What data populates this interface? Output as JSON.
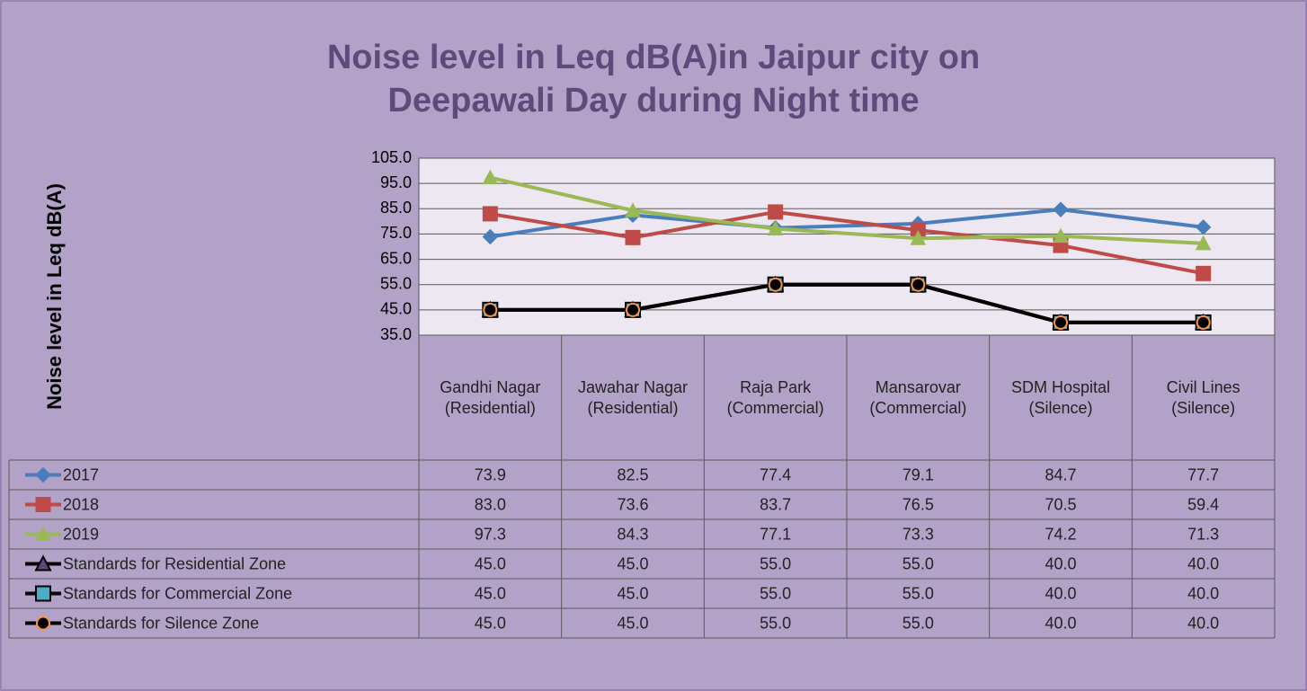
{
  "chart_data": {
    "type": "line",
    "title": "Noise level in Leq dB(A)in Jaipur city on Deepawali Day during Night time",
    "y_label": "Noise level in Leq dB(A)",
    "categories": [
      "Gandhi Nagar (Residential)",
      "Jawahar Nagar (Residential)",
      "Raja Park (Commercial)",
      "Mansarovar (Commercial)",
      "SDM Hospital (Silence)",
      "Civil Lines (Silence)"
    ],
    "ylim": [
      35,
      105
    ],
    "yticks": [
      {
        "value": 35,
        "label": "35.0"
      },
      {
        "value": 45,
        "label": "45.0"
      },
      {
        "value": 55,
        "label": "55.0"
      },
      {
        "value": 65,
        "label": "65.0"
      },
      {
        "value": 75,
        "label": "75.0"
      },
      {
        "value": 85,
        "label": "85.0"
      },
      {
        "value": 95,
        "label": "95.0"
      },
      {
        "value": 105,
        "label": "105.0"
      }
    ],
    "grid": true,
    "data_table": true,
    "series": [
      {
        "name": "2017",
        "color": "#4a7ebb",
        "marker": "diamond",
        "values": [
          73.9,
          82.5,
          77.4,
          79.1,
          84.7,
          77.7
        ],
        "value_labels": [
          "73.9",
          "82.5",
          "77.4",
          "79.1",
          "84.7",
          "77.7"
        ]
      },
      {
        "name": "2018",
        "color": "#be4b48",
        "marker": "square",
        "values": [
          83.0,
          73.6,
          83.7,
          76.5,
          70.5,
          59.4
        ],
        "value_labels": [
          "83.0",
          "73.6",
          "83.7",
          "76.5",
          "70.5",
          "59.4"
        ]
      },
      {
        "name": "2019",
        "color": "#98b954",
        "marker": "triangle",
        "values": [
          97.3,
          84.3,
          77.1,
          73.3,
          74.2,
          71.3
        ],
        "value_labels": [
          "97.3",
          "84.3",
          "77.1",
          "73.3",
          "74.2",
          "71.3"
        ]
      },
      {
        "name": "Standards for Residential Zone",
        "color": "#000000",
        "marker": "triangle",
        "marker_color": "#5f497a",
        "values": [
          45.0,
          45.0,
          55.0,
          55.0,
          40.0,
          40.0
        ],
        "value_labels": [
          "45.0",
          "45.0",
          "55.0",
          "55.0",
          "40.0",
          "40.0"
        ]
      },
      {
        "name": "Standards for Commercial Zone",
        "color": "#000000",
        "marker": "square",
        "marker_color": "#4bacc6",
        "values": [
          45.0,
          45.0,
          55.0,
          55.0,
          40.0,
          40.0
        ],
        "value_labels": [
          "45.0",
          "45.0",
          "55.0",
          "55.0",
          "40.0",
          "40.0"
        ]
      },
      {
        "name": "Standards for Silence Zone",
        "color": "#000000",
        "marker": "circle",
        "marker_color": "#f79646",
        "values": [
          45.0,
          45.0,
          55.0,
          55.0,
          40.0,
          40.0
        ],
        "value_labels": [
          "45.0",
          "45.0",
          "55.0",
          "55.0",
          "40.0",
          "40.0"
        ]
      }
    ]
  }
}
